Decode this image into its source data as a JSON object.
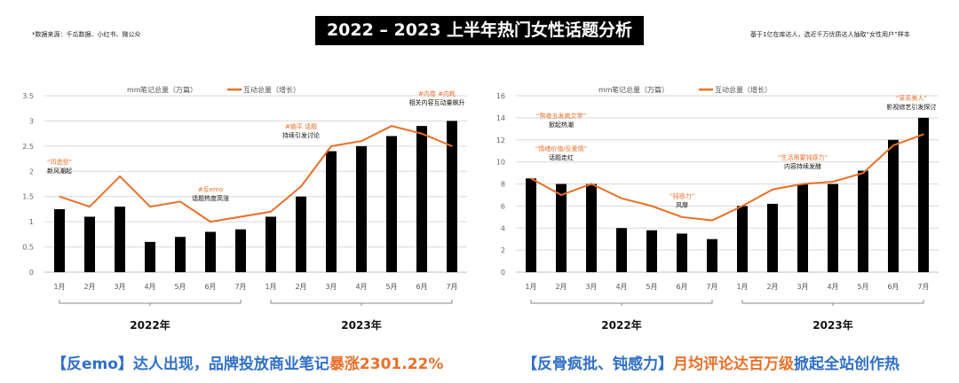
{
  "header": {
    "title": "2022 – 2023 上半年热门女性话题分析",
    "source_note": "*数据来源：千瓜数据、小红书、微公众",
    "sample_note": "基于1亿在库达人，选近千万优质达人抽取“女性用户”样本"
  },
  "colors": {
    "bar": "#000000",
    "line": "#e8702a",
    "caption_blue": "#2f6fc6",
    "caption_orange": "#e8702a",
    "grid": "#d9d9d9"
  },
  "chart_data": [
    {
      "type": "bar+line",
      "categories": [
        "1月",
        "2月",
        "3月",
        "4月",
        "5月",
        "6月",
        "7月",
        "1月",
        "2月",
        "3月",
        "4月",
        "5月",
        "6月",
        "7月"
      ],
      "groups": [
        "2022年",
        "2023年"
      ],
      "ylim": [
        0,
        3.5
      ],
      "yticks": [
        "0",
        "0.5",
        "1",
        "1.5",
        "2",
        "2.5",
        "3",
        "3.5"
      ],
      "grid": true,
      "legend_position": "top",
      "series": [
        {
          "name": "笔记总量（万篇）",
          "type": "bar",
          "values": [
            1.25,
            1.1,
            1.3,
            0.6,
            0.7,
            0.8,
            0.85,
            1.1,
            1.5,
            2.4,
            2.5,
            2.7,
            2.9,
            3.0
          ]
        },
        {
          "name": "互动总量（增长）",
          "type": "line",
          "values": [
            1.5,
            1.3,
            1.9,
            1.3,
            1.4,
            1.0,
            1.1,
            1.2,
            1.7,
            2.5,
            2.6,
            2.9,
            2.75,
            2.5
          ]
        }
      ],
      "annotations": [
        {
          "tag": "“凹造型”",
          "text": "新风潮起",
          "at_category": 0,
          "at_y": 2.15
        },
        {
          "tag": "#反emo",
          "text": "话题热度高涨",
          "at_category": 5,
          "at_y": 1.6
        },
        {
          "tag": "#躺平 话题",
          "text": "持续引发讨论",
          "at_category": 8,
          "at_y": 2.85
        },
        {
          "tag": "#内卷 #内耗",
          "text": "相关内容互动量飙升",
          "at_category": 12.5,
          "at_y": 3.5
        }
      ]
    },
    {
      "type": "bar+line",
      "categories": [
        "1月",
        "2月",
        "3月",
        "4月",
        "5月",
        "6月",
        "7月",
        "1月",
        "2月",
        "3月",
        "4月",
        "5月",
        "6月",
        "7月"
      ],
      "groups": [
        "2022年",
        "2023年"
      ],
      "ylim": [
        0,
        16
      ],
      "yticks": [
        "0",
        "2",
        "4",
        "6",
        "8",
        "10",
        "12",
        "14",
        "16"
      ],
      "grid": true,
      "legend_position": "top",
      "series": [
        {
          "name": "笔记总量（万篇）",
          "type": "bar",
          "values": [
            8.5,
            8,
            8,
            4,
            3.8,
            3.5,
            3,
            6,
            6.2,
            8,
            8,
            9.2,
            12,
            14
          ]
        },
        {
          "name": "互动总量（增长）",
          "type": "line",
          "values": [
            8.5,
            7,
            8,
            6.7,
            6,
            5,
            4.7,
            6,
            7.5,
            8,
            8.2,
            9,
            11.5,
            12.5
          ]
        }
      ],
      "annotations": [
        {
          "tag": "“熬夜五发疯文学”",
          "text": "掀起热潮",
          "at_category": 1,
          "at_y": 14
        },
        {
          "tag": "“情绪价值/反爱情”",
          "text": "话题走红",
          "at_category": 1,
          "at_y": 11
        },
        {
          "tag": "“钝感力”",
          "text": "风靡",
          "at_category": 5,
          "at_y": 6.7
        },
        {
          "tag": "“生活需要钝感力”",
          "text": "内容持续发酵",
          "at_category": 9,
          "at_y": 10.2
        },
        {
          "tag": "“草系美人”",
          "text": "影视综艺引发探讨",
          "at_category": 12.6,
          "at_y": 15.6
        }
      ]
    }
  ],
  "captions": [
    {
      "part1": "【反emo】达人出现，品牌投放商业笔记",
      "part2": "暴涨2301.22%",
      "part3": ""
    },
    {
      "part1": "【反骨疯批、钝感力】",
      "part2": "月均评论达百万级",
      "part3": "掀起全站创作热"
    }
  ]
}
